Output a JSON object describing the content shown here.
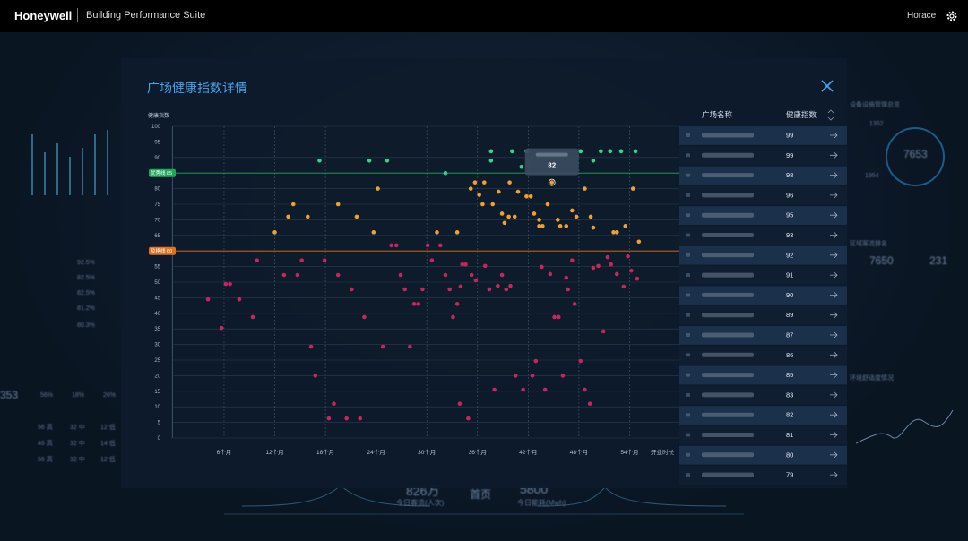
{
  "header": {
    "brand": "Honeywell",
    "product": "Building Performance Suite",
    "user": "Horace"
  },
  "background": {
    "left_rates": [
      "92.5%",
      "82.5%",
      "82.5%",
      "81.2%",
      "80.3%"
    ],
    "left_rings": [
      "56%",
      "18%",
      "26%"
    ],
    "left_big": "353",
    "left_rows": [
      [
        "56 高",
        "32 中",
        "12 低"
      ],
      [
        "46 高",
        "32 中",
        "14 低"
      ],
      [
        "56 高",
        "32 中",
        "12 低"
      ]
    ],
    "right_titles": [
      "设备设施管理总览",
      "区域客流排名",
      "环境舒适度情况"
    ],
    "right_numbers": [
      "1352",
      "7653",
      "1954",
      "7650",
      "231"
    ],
    "bottom": {
      "flow": "826万",
      "flow_label": "今日客流(人次)",
      "home": "首页",
      "energy": "5800",
      "energy_label": "今日能耗(Mwh)"
    }
  },
  "modal": {
    "title": "广场健康指数详情"
  },
  "chart_data": {
    "type": "scatter",
    "y_label": "健康指数",
    "x_label": "开业时长",
    "xlim": [
      0,
      60
    ],
    "ylim": [
      0,
      100
    ],
    "xticks": [
      {
        "value": 6,
        "label": "6个月"
      },
      {
        "value": 12,
        "label": "12个月"
      },
      {
        "value": 18,
        "label": "18个月"
      },
      {
        "value": 24,
        "label": "24个月"
      },
      {
        "value": 30,
        "label": "30个月"
      },
      {
        "value": 36,
        "label": "36个月"
      },
      {
        "value": 42,
        "label": "42个月"
      },
      {
        "value": 48,
        "label": "48个月"
      },
      {
        "value": 54,
        "label": "54个月"
      }
    ],
    "yticks": [
      0,
      5,
      10,
      15,
      20,
      25,
      30,
      35,
      40,
      45,
      50,
      55,
      60,
      65,
      70,
      75,
      80,
      85,
      90,
      95,
      100
    ],
    "grid": true,
    "thresholds": [
      {
        "value": 85,
        "label": "优秀线 85",
        "color": "#1fa85a"
      },
      {
        "value": 60,
        "label": "及格线 60",
        "color": "#e0701e"
      }
    ],
    "series": [
      {
        "color": "#2fd68a",
        "x": [
          17.3,
          23.2,
          25.3,
          32.2,
          37.6,
          37.6,
          40.1,
          41.8,
          41.2,
          48.2,
          49.7,
          50.6,
          51.7,
          53.0,
          54.7
        ],
        "y": [
          89,
          89,
          89,
          85,
          92,
          89,
          92,
          92,
          87,
          92,
          89,
          92,
          92,
          92,
          92
        ]
      },
      {
        "color": "#f0a030",
        "x": [
          12.0,
          13.6,
          14.2,
          15.9,
          19.5,
          21.7,
          23.7,
          24.2,
          31.2,
          33.6,
          35.2,
          35.7,
          36.2,
          36.8,
          36.6,
          37.8,
          38.5,
          38.9,
          39.2,
          39.7,
          39.8,
          40.4,
          40.8,
          41.8,
          42.3,
          42.7,
          43.3,
          43.3,
          43.7,
          44.3,
          44.8,
          45.5,
          45.8,
          46.5,
          47.2,
          47.7,
          48.7,
          49.4,
          49.7,
          52.1,
          52.5,
          53.5,
          54.4,
          55.1
        ],
        "y": [
          66,
          71,
          75,
          71,
          75,
          71,
          66,
          80,
          66,
          66,
          80,
          82,
          78,
          82,
          75,
          75,
          79,
          72,
          69,
          71,
          82,
          71,
          79,
          77.5,
          77.5,
          72,
          70,
          68,
          68,
          75,
          82,
          70,
          68,
          68,
          73,
          71,
          80,
          71,
          67.5,
          66,
          66,
          68,
          80,
          63
        ]
      },
      {
        "color": "#c8245e",
        "x": [
          4.1,
          5.7,
          6.2,
          6.7,
          7.8,
          9.4,
          9.9,
          13.1,
          14.7,
          15.2,
          16.3,
          16.8,
          17.9,
          18.4,
          19.0,
          19.5,
          20.5,
          21.1,
          22.1,
          22.6,
          24.8,
          25.8,
          26.4,
          26.9,
          27.4,
          28.0,
          28.5,
          29.0,
          29.5,
          30.1,
          30.6,
          31.6,
          32.2,
          32.7,
          33.1,
          33.6,
          33.9,
          34.0,
          34.2,
          34.6,
          34.9,
          35.3,
          35.8,
          36.9,
          37.4,
          38.0,
          38.4,
          38.9,
          39.4,
          39.9,
          40.5,
          41.4,
          42.5,
          42.9,
          43.6,
          44.0,
          44.6,
          45.1,
          45.6,
          46.1,
          46.5,
          46.7,
          47.2,
          47.5,
          48.2,
          48.7,
          49.3,
          49.7,
          50.3,
          50.9,
          51.4,
          51.8,
          52.5,
          53.3,
          53.8,
          54.2,
          54.9
        ],
        "y": [
          44.5,
          35.3,
          49.4,
          49.4,
          44.5,
          38.8,
          57,
          52.3,
          52.3,
          57,
          29.3,
          20,
          57,
          6.3,
          11,
          52.3,
          6.3,
          47.7,
          6.3,
          38.8,
          29.3,
          61.8,
          61.8,
          52.3,
          47.7,
          29.3,
          43,
          43,
          47.7,
          61.8,
          57,
          61.8,
          52.3,
          47.7,
          38.8,
          43,
          11,
          48.6,
          55.7,
          55.7,
          6.3,
          52.3,
          50.6,
          55.2,
          47.7,
          15.5,
          48.8,
          52.3,
          47.7,
          48.8,
          20,
          15.5,
          20,
          24.7,
          54.9,
          15.5,
          52.6,
          38.8,
          38.8,
          20,
          51.4,
          47.7,
          57,
          43,
          24.7,
          15.5,
          11,
          54.6,
          55.2,
          34.2,
          58,
          55.7,
          52.6,
          48.6,
          58.3,
          53.7,
          51.1
        ]
      }
    ]
  },
  "table": {
    "columns": [
      "广场名称",
      "健康指数"
    ],
    "scores": [
      99,
      99,
      98,
      96,
      95,
      93,
      92,
      91,
      90,
      89,
      87,
      86,
      85,
      83,
      82,
      81,
      80,
      79
    ]
  }
}
